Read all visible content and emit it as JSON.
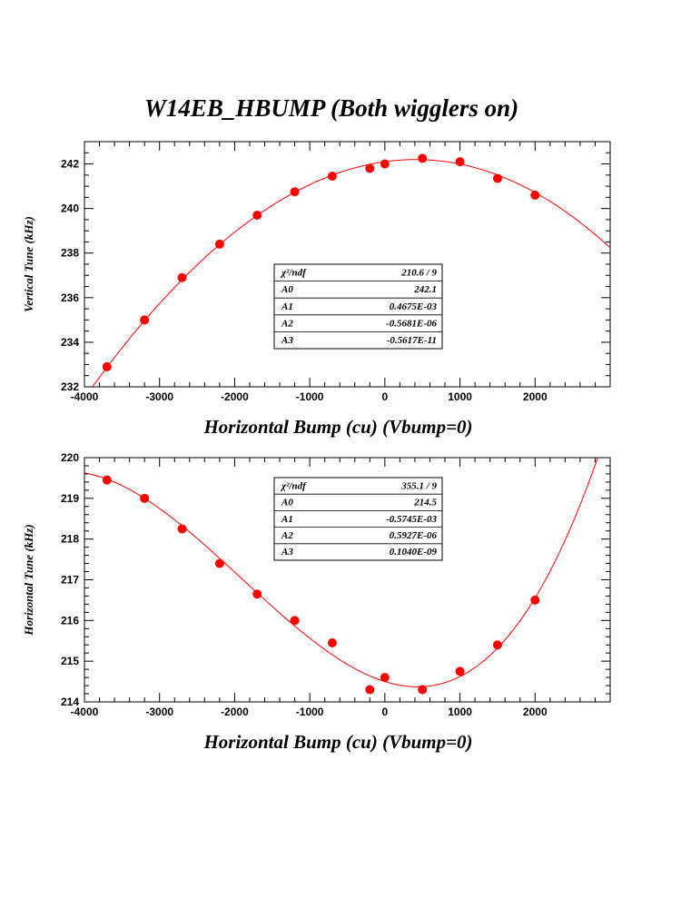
{
  "title": "W14EB_HBUMP (Both wigglers on)",
  "colors": {
    "data": "#ff0000",
    "fit": "#ff0000",
    "frame": "#000000",
    "background": "#ffffff"
  },
  "chart_data": [
    {
      "type": "scatter",
      "title": "W14EB_HBUMP (Both wigglers on)",
      "xlabel": "Horizontal Bump (cu) (Vbump=0)",
      "ylabel": "Vertical Tune (kHz)",
      "xlim": [
        -4000,
        3000
      ],
      "ylim": [
        232,
        243
      ],
      "x_ticks": [
        -4000,
        -3000,
        -2000,
        -1000,
        0,
        1000,
        2000
      ],
      "x_tick_labels": [
        "-4000",
        "-3000",
        "-2000",
        "-1000",
        "0",
        "1000",
        "2000"
      ],
      "y_ticks": [
        232,
        234,
        236,
        238,
        240,
        242
      ],
      "y_tick_labels": [
        "232",
        "234",
        "236",
        "238",
        "240",
        "242"
      ],
      "x": [
        -3700,
        -3200,
        -2700,
        -2200,
        -1700,
        -1200,
        -700,
        -200,
        0,
        500,
        1000,
        1500,
        2000
      ],
      "y": [
        232.9,
        235.0,
        236.9,
        238.4,
        239.7,
        240.75,
        241.45,
        241.8,
        242.0,
        242.25,
        242.1,
        241.35,
        240.6
      ],
      "fit": {
        "model": "A0 + A1*x + A2*x^2 + A3*x^3",
        "A0": 242.1,
        "A1": 0.0004675,
        "A2": -5.681e-07,
        "A3": -5.617e-12
      },
      "stats": [
        {
          "label": "χ²/ndf",
          "value": "210.6   /     9"
        },
        {
          "label": "A0",
          "value": "242.1"
        },
        {
          "label": "A1",
          "value": "0.4675E-03"
        },
        {
          "label": "A2",
          "value": "-0.5681E-06"
        },
        {
          "label": "A3",
          "value": "-0.5617E-11"
        }
      ]
    },
    {
      "type": "scatter",
      "xlabel": "Horizontal Bump (cu) (Vbump=0)",
      "ylabel": "Horizontal Tune (kHz)",
      "xlim": [
        -4000,
        3000
      ],
      "ylim": [
        214,
        220
      ],
      "x_ticks": [
        -4000,
        -3000,
        -2000,
        -1000,
        0,
        1000,
        2000
      ],
      "x_tick_labels": [
        "-4000",
        "-3000",
        "-2000",
        "-1000",
        "0",
        "1000",
        "2000"
      ],
      "y_ticks": [
        214,
        215,
        216,
        217,
        218,
        219,
        220
      ],
      "y_tick_labels": [
        "214",
        "215",
        "216",
        "217",
        "218",
        "219",
        "220"
      ],
      "x": [
        -3700,
        -3200,
        -2700,
        -2200,
        -1700,
        -1200,
        -700,
        -200,
        0,
        500,
        1000,
        1500,
        2000
      ],
      "y": [
        219.45,
        219.0,
        218.25,
        217.4,
        216.65,
        216.0,
        215.45,
        214.3,
        214.6,
        214.3,
        214.75,
        215.4,
        216.5
      ],
      "fit": {
        "model": "A0 + A1*x + A2*x^2 + A3*x^3",
        "A0": 214.5,
        "A1": -0.0005745,
        "A2": 5.927e-07,
        "A3": 1.04e-10
      },
      "stats": [
        {
          "label": "χ²/ndf",
          "value": "355.1   /     9"
        },
        {
          "label": "A0",
          "value": "214.5"
        },
        {
          "label": "A1",
          "value": "-0.5745E-03"
        },
        {
          "label": "A2",
          "value": "0.5927E-06"
        },
        {
          "label": "A3",
          "value": "0.1040E-09"
        }
      ]
    }
  ]
}
